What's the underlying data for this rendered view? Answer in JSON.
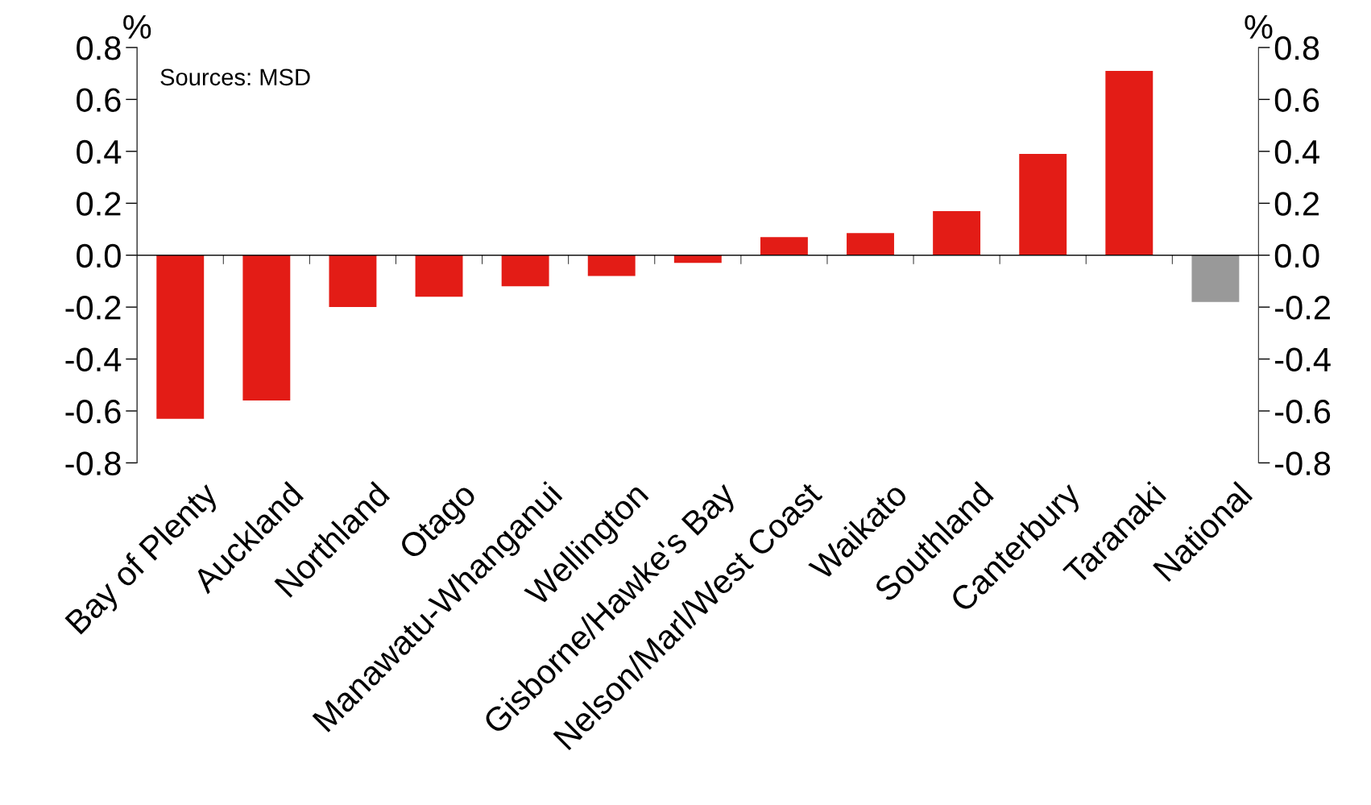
{
  "chart_data": {
    "type": "bar",
    "categories": [
      "Bay of Plenty",
      "Auckland",
      "Northland",
      "Otago",
      "Manawatu-Whanganui",
      "Wellington",
      "Gisborne/Hawke's Bay",
      "Nelson/Marl/West Coast",
      "Waikato",
      "Southland",
      "Canterbury",
      "Taranaki",
      "National"
    ],
    "values": [
      -0.63,
      -0.56,
      -0.2,
      -0.16,
      -0.12,
      -0.08,
      -0.03,
      0.07,
      0.085,
      0.17,
      0.39,
      0.71,
      -0.18
    ],
    "colors": [
      "#e31c16",
      "#e31c16",
      "#e31c16",
      "#e31c16",
      "#e31c16",
      "#e31c16",
      "#e31c16",
      "#e31c16",
      "#e31c16",
      "#e31c16",
      "#e31c16",
      "#e31c16",
      "#999999"
    ],
    "ylabel": "%",
    "y2label": "%",
    "ylim": [
      -0.8,
      0.8
    ],
    "yticks": [
      {
        "value": -0.8,
        "label": "-0.8"
      },
      {
        "value": -0.6,
        "label": "-0.6"
      },
      {
        "value": -0.4,
        "label": "-0.4"
      },
      {
        "value": -0.2,
        "label": "-0.2"
      },
      {
        "value": 0,
        "label": "0.0"
      },
      {
        "value": 0.2,
        "label": "0.2"
      },
      {
        "value": 0.4,
        "label": "0.4"
      },
      {
        "value": 0.6,
        "label": "0.6"
      },
      {
        "value": 0.8,
        "label": "0.8"
      }
    ],
    "y2lim": [
      -0.8,
      0.8
    ],
    "y2ticks": [
      {
        "value": -0.8,
        "label": "-0.8"
      },
      {
        "value": -0.6,
        "label": "-0.6"
      },
      {
        "value": -0.4,
        "label": "-0.4"
      },
      {
        "value": -0.2,
        "label": "-0.2"
      },
      {
        "value": 0,
        "label": "0.0"
      },
      {
        "value": 0.2,
        "label": "0.2"
      },
      {
        "value": 0.4,
        "label": "0.4"
      },
      {
        "value": 0.6,
        "label": "0.6"
      },
      {
        "value": 0.8,
        "label": "0.8"
      }
    ],
    "annotations": [
      "Sources: MSD"
    ]
  }
}
